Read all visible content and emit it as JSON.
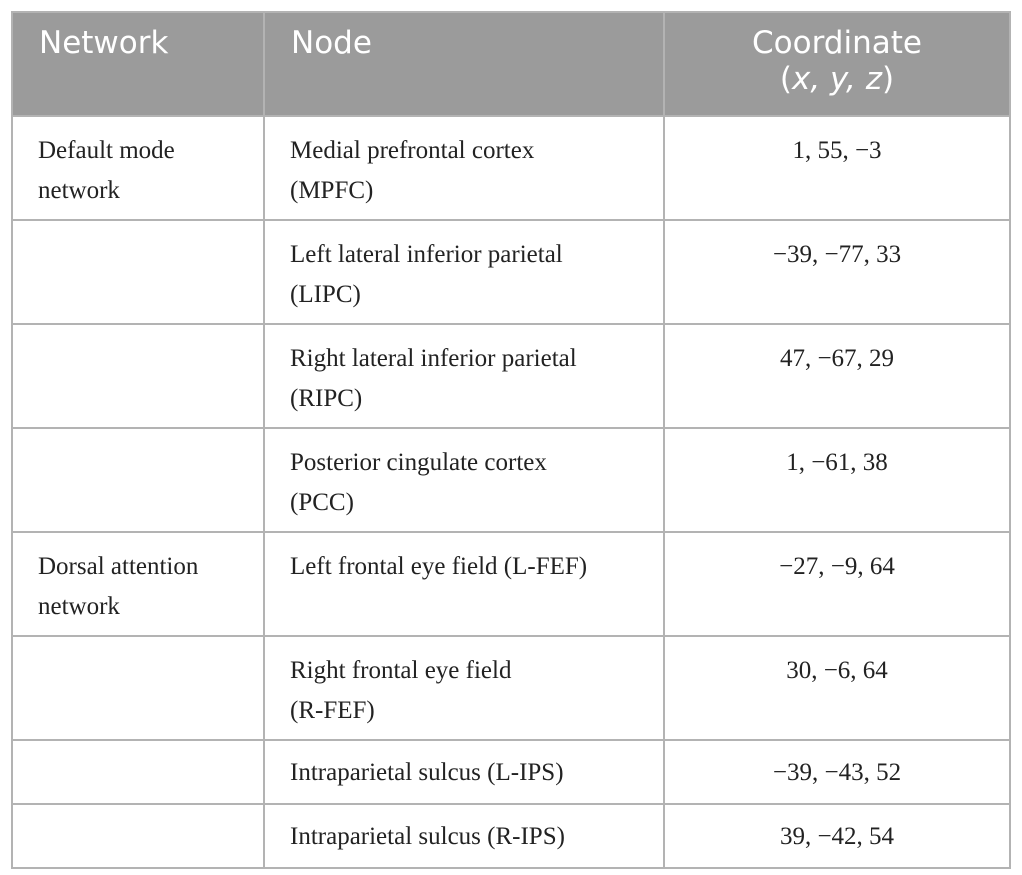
{
  "table": {
    "headers": {
      "network": "Network",
      "node": "Node",
      "coordinate_line1": "Coordinate",
      "coordinate_line2_open": "(",
      "coordinate_line2_axes": "x, y, z",
      "coordinate_line2_close": ")"
    },
    "rows": [
      {
        "network_line1": "Default mode",
        "network_line2": "network",
        "node_line1": "Medial prefrontal cortex",
        "node_line2": "(MPFC)",
        "coordinate": "1, 55, −3"
      },
      {
        "network_line1": "",
        "network_line2": "",
        "node_line1": "Left lateral inferior parietal",
        "node_line2": "(LIPC)",
        "coordinate": "−39, −77, 33"
      },
      {
        "network_line1": "",
        "network_line2": "",
        "node_line1": "Right lateral inferior parietal",
        "node_line2": "(RIPC)",
        "coordinate": "47, −67, 29"
      },
      {
        "network_line1": "",
        "network_line2": "",
        "node_line1": "Posterior cingulate cortex",
        "node_line2": "(PCC)",
        "coordinate": "1, −61, 38"
      },
      {
        "network_line1": "Dorsal attention",
        "network_line2": "network",
        "node_line1": "Left frontal eye field (L-FEF)",
        "node_line2": "",
        "coordinate": "−27, −9, 64"
      },
      {
        "network_line1": "",
        "network_line2": "",
        "node_line1": "Right frontal eye field",
        "node_line2": "(R-FEF)",
        "coordinate": "30, −6, 64"
      },
      {
        "network_line1": "",
        "network_line2": "",
        "node_line1": "Intraparietal sulcus (L-IPS)",
        "node_line2": "",
        "coordinate": "−39, −43, 52"
      },
      {
        "network_line1": "",
        "network_line2": "",
        "node_line1": "Intraparietal sulcus (R-IPS)",
        "node_line2": "",
        "coordinate": "39, −42, 54"
      }
    ]
  }
}
